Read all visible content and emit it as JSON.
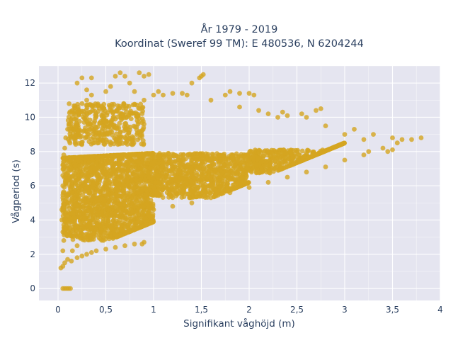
{
  "chart_data": {
    "type": "scatter",
    "title_lines": [
      "År 1979 - 2019",
      "Koordinat (Sweref 99 TM): E 480536, N 6204244"
    ],
    "xlabel": "Signifikant våghöjd (m)",
    "ylabel": "Vågperiod (s)",
    "xlim": [
      -0.2,
      4.0
    ],
    "ylim": [
      -0.7,
      13.0
    ],
    "xticks": [
      0,
      0.5,
      1,
      1.5,
      2,
      2.5,
      3,
      3.5,
      4
    ],
    "xtick_labels": [
      "0",
      "0,5",
      "1",
      "1,5",
      "2",
      "2,5",
      "3",
      "3,5",
      "4"
    ],
    "yticks": [
      0,
      2,
      4,
      6,
      8,
      10,
      12
    ],
    "ytick_labels": [
      "0",
      "2",
      "4",
      "6",
      "8",
      "10",
      "12"
    ],
    "grid": true,
    "legend": "none",
    "marker_color": "#d4a520",
    "plot_bg": "#e5e5f0",
    "series": [
      {
        "name": "",
        "points": [
          [
            0.05,
            0.0
          ],
          [
            0.07,
            0.0
          ],
          [
            0.09,
            0.0
          ],
          [
            0.11,
            0.0
          ],
          [
            0.13,
            0.0
          ],
          [
            0.03,
            1.2
          ],
          [
            0.05,
            1.3
          ],
          [
            0.07,
            1.5
          ],
          [
            0.1,
            1.7
          ],
          [
            0.14,
            1.6
          ],
          [
            0.2,
            1.8
          ],
          [
            0.25,
            1.9
          ],
          [
            0.3,
            2.0
          ],
          [
            0.35,
            2.1
          ],
          [
            0.4,
            2.2
          ],
          [
            0.5,
            2.3
          ],
          [
            0.6,
            2.4
          ],
          [
            0.7,
            2.5
          ],
          [
            0.8,
            2.6
          ],
          [
            0.88,
            2.6
          ],
          [
            0.9,
            2.7
          ],
          [
            0.05,
            2.2
          ],
          [
            0.06,
            2.8
          ],
          [
            0.05,
            3.3
          ],
          [
            0.04,
            4.0
          ],
          [
            0.04,
            4.6
          ],
          [
            0.05,
            5.3
          ],
          [
            0.05,
            6.0
          ],
          [
            0.05,
            6.6
          ],
          [
            0.05,
            7.2
          ],
          [
            0.06,
            7.8
          ],
          [
            0.07,
            8.2
          ],
          [
            0.08,
            8.8
          ],
          [
            0.1,
            9.3
          ],
          [
            0.12,
            9.6
          ],
          [
            0.15,
            10.0
          ],
          [
            0.15,
            10.4
          ],
          [
            0.2,
            10.3
          ],
          [
            0.25,
            10.8
          ],
          [
            0.3,
            11.0
          ],
          [
            0.35,
            11.3
          ],
          [
            0.3,
            11.6
          ],
          [
            0.2,
            12.0
          ],
          [
            0.25,
            12.3
          ],
          [
            0.35,
            12.3
          ],
          [
            0.5,
            11.5
          ],
          [
            0.55,
            11.8
          ],
          [
            0.6,
            12.4
          ],
          [
            0.65,
            12.6
          ],
          [
            0.7,
            12.4
          ],
          [
            0.75,
            12.0
          ],
          [
            0.85,
            12.6
          ],
          [
            0.9,
            12.4
          ],
          [
            0.95,
            12.5
          ],
          [
            0.8,
            11.5
          ],
          [
            0.9,
            11.0
          ],
          [
            1.0,
            11.3
          ],
          [
            1.05,
            11.5
          ],
          [
            1.1,
            11.3
          ],
          [
            1.2,
            11.4
          ],
          [
            1.3,
            11.4
          ],
          [
            1.35,
            11.3
          ],
          [
            1.4,
            12.0
          ],
          [
            1.48,
            12.3
          ],
          [
            1.5,
            12.4
          ],
          [
            1.52,
            12.5
          ],
          [
            1.6,
            11.0
          ],
          [
            1.75,
            11.3
          ],
          [
            1.8,
            11.5
          ],
          [
            1.9,
            11.4
          ],
          [
            2.0,
            11.4
          ],
          [
            2.05,
            11.3
          ],
          [
            1.9,
            10.6
          ],
          [
            2.1,
            10.4
          ],
          [
            2.2,
            10.2
          ],
          [
            2.3,
            10.0
          ],
          [
            2.4,
            10.1
          ],
          [
            2.55,
            10.2
          ],
          [
            2.7,
            10.4
          ],
          [
            2.75,
            10.5
          ],
          [
            2.35,
            10.3
          ],
          [
            2.6,
            10.0
          ],
          [
            2.8,
            9.5
          ],
          [
            3.0,
            9.0
          ],
          [
            3.1,
            9.3
          ],
          [
            3.2,
            8.7
          ],
          [
            3.3,
            9.0
          ],
          [
            3.25,
            8.0
          ],
          [
            3.4,
            8.2
          ],
          [
            3.5,
            8.1
          ],
          [
            3.5,
            8.8
          ],
          [
            3.6,
            8.7
          ],
          [
            3.7,
            8.7
          ],
          [
            3.8,
            8.8
          ],
          [
            3.55,
            8.5
          ],
          [
            3.45,
            8.0
          ],
          [
            1.0,
            4.6
          ],
          [
            1.2,
            4.8
          ],
          [
            1.4,
            5.0
          ],
          [
            1.6,
            5.3
          ],
          [
            1.8,
            5.6
          ],
          [
            2.0,
            5.9
          ],
          [
            2.2,
            6.2
          ],
          [
            2.4,
            6.5
          ],
          [
            2.6,
            6.8
          ],
          [
            2.8,
            7.1
          ],
          [
            3.0,
            7.5
          ],
          [
            3.2,
            7.8
          ],
          [
            0.6,
            4.4
          ],
          [
            0.7,
            4.2
          ],
          [
            0.5,
            3.8
          ],
          [
            0.4,
            3.4
          ],
          [
            0.3,
            3.0
          ],
          [
            0.2,
            2.5
          ],
          [
            0.15,
            2.2
          ]
        ],
        "dense_regions": [
          {
            "x_range": [
              0.05,
              1.0
            ],
            "y_center": 5.5,
            "y_spread": 2.7,
            "count": 1800
          },
          {
            "x_range": [
              1.0,
              2.0
            ],
            "y_center": 6.6,
            "y_spread": 1.3,
            "count": 900
          },
          {
            "x_range": [
              2.0,
              3.0
            ],
            "y_center": 7.4,
            "y_spread": 0.7,
            "count": 500
          },
          {
            "x_range": [
              0.1,
              0.9
            ],
            "y_center": 9.6,
            "y_spread": 1.2,
            "count": 400
          }
        ]
      }
    ]
  }
}
